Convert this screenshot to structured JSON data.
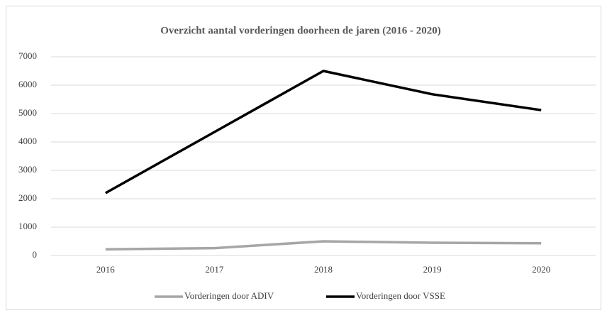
{
  "chart_data": {
    "type": "line",
    "title": "Overzicht aantal vorderingen doorheen de jaren  (2016 - 2020)",
    "categories": [
      "2016",
      "2017",
      "2018",
      "2019",
      "2020"
    ],
    "series": [
      {
        "name": "Vorderingen door ADIV",
        "color": "#a6a6a6",
        "values": [
          220,
          260,
          500,
          450,
          430
        ]
      },
      {
        "name": "Vorderingen door VSSE",
        "color": "#000000",
        "values": [
          2200,
          4350,
          6500,
          5680,
          5120
        ]
      }
    ],
    "ylim": [
      0,
      7000
    ],
    "yticks": [
      0,
      1000,
      2000,
      3000,
      4000,
      5000,
      6000,
      7000
    ],
    "grid": true,
    "legend": "bottom"
  }
}
